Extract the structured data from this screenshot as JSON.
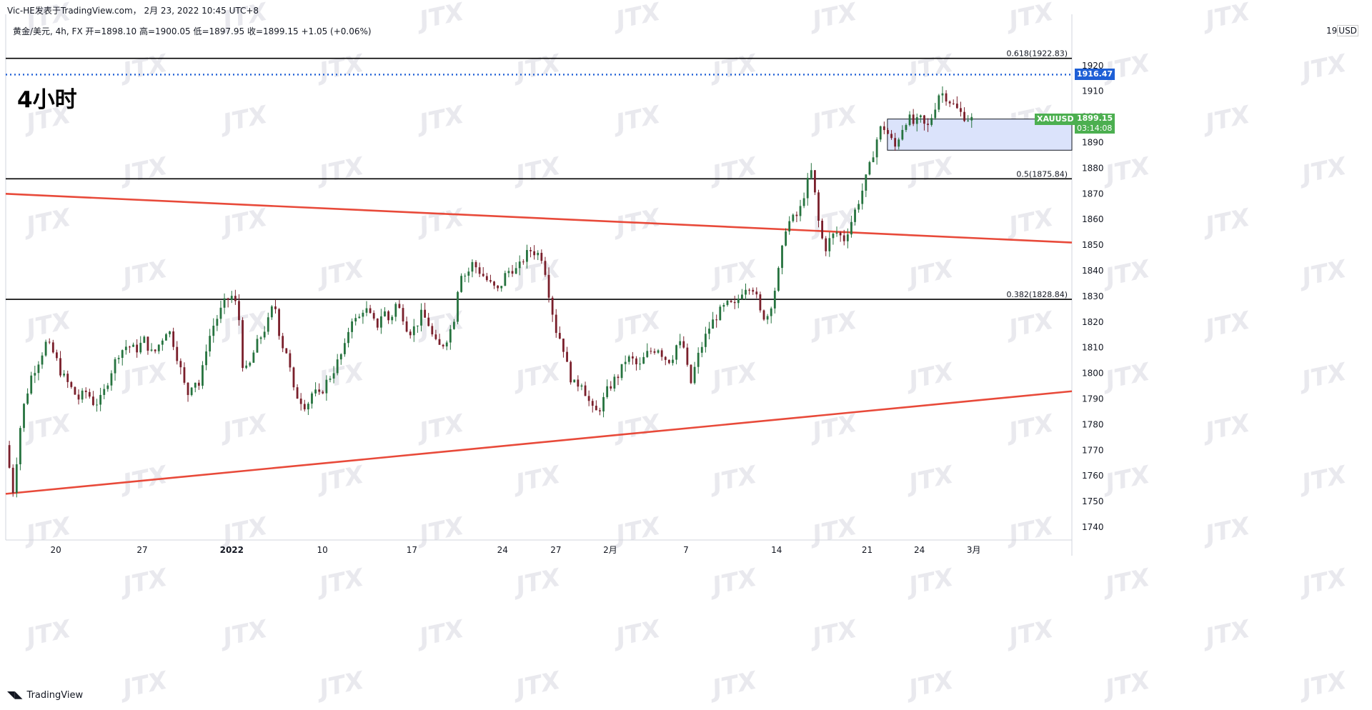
{
  "header": {
    "publisher": "Vic-HE发表于TradingView.com， 2月 23, 2022 10:45 UTC+8",
    "symbol_line": "黄金/美元, 4h, FX  开=1898.10  高=1900.05  低=1897.95  收=1899.15  +1.05 (+0.06%)",
    "timeframe": "4小时",
    "currency": "USD",
    "currency_tick": "19"
  },
  "footer": {
    "logo": "TradingView"
  },
  "watermark": "JTX",
  "colors": {
    "up": "#26733f",
    "down": "#7a1f2b",
    "trend": "#e84a3a",
    "level": "#000000",
    "dotted": "#1e5fd6",
    "zone": "#dbe3fb",
    "badge_green": "#4caf50",
    "badge_blue": "#1e5fd6"
  },
  "chart_data": {
    "type": "candlestick",
    "symbol": "XAUUSD",
    "timeframe": "4h",
    "ylim": [
      1735,
      1940
    ],
    "y_ticks": [
      1740,
      1750,
      1760,
      1770,
      1780,
      1790,
      1800,
      1810,
      1820,
      1830,
      1840,
      1850,
      1860,
      1870,
      1880,
      1890,
      1900,
      1910,
      1920
    ],
    "x_ticks": [
      {
        "label": "20",
        "pos": 0.047
      },
      {
        "label": "27",
        "pos": 0.128
      },
      {
        "label": "2022",
        "pos": 0.212,
        "bold": true
      },
      {
        "label": "10",
        "pos": 0.297
      },
      {
        "label": "17",
        "pos": 0.381
      },
      {
        "label": "24",
        "pos": 0.466
      },
      {
        "label": "27",
        "pos": 0.516
      },
      {
        "label": "2月",
        "pos": 0.567
      },
      {
        "label": "7",
        "pos": 0.638
      },
      {
        "label": "14",
        "pos": 0.723
      },
      {
        "label": "21",
        "pos": 0.808
      },
      {
        "label": "24",
        "pos": 0.857
      },
      {
        "label": "3月",
        "pos": 0.908
      }
    ],
    "price_path": [
      [
        0.0,
        1772
      ],
      [
        0.007,
        1754
      ],
      [
        0.015,
        1784
      ],
      [
        0.024,
        1799
      ],
      [
        0.032,
        1806
      ],
      [
        0.038,
        1812
      ],
      [
        0.046,
        1807
      ],
      [
        0.052,
        1800
      ],
      [
        0.06,
        1795
      ],
      [
        0.068,
        1790
      ],
      [
        0.076,
        1793
      ],
      [
        0.083,
        1788
      ],
      [
        0.09,
        1790
      ],
      [
        0.098,
        1800
      ],
      [
        0.106,
        1808
      ],
      [
        0.114,
        1811
      ],
      [
        0.122,
        1809
      ],
      [
        0.13,
        1813
      ],
      [
        0.138,
        1807
      ],
      [
        0.146,
        1813
      ],
      [
        0.152,
        1818
      ],
      [
        0.158,
        1811
      ],
      [
        0.165,
        1800
      ],
      [
        0.17,
        1791
      ],
      [
        0.176,
        1798
      ],
      [
        0.182,
        1795
      ],
      [
        0.188,
        1810
      ],
      [
        0.194,
        1818
      ],
      [
        0.2,
        1823
      ],
      [
        0.206,
        1828
      ],
      [
        0.212,
        1830
      ],
      [
        0.218,
        1825
      ],
      [
        0.223,
        1800
      ],
      [
        0.228,
        1802
      ],
      [
        0.234,
        1810
      ],
      [
        0.24,
        1815
      ],
      [
        0.246,
        1820
      ],
      [
        0.252,
        1828
      ],
      [
        0.258,
        1812
      ],
      [
        0.264,
        1808
      ],
      [
        0.27,
        1793
      ],
      [
        0.276,
        1790
      ],
      [
        0.282,
        1787
      ],
      [
        0.288,
        1793
      ],
      [
        0.294,
        1791
      ],
      [
        0.3,
        1796
      ],
      [
        0.306,
        1800
      ],
      [
        0.312,
        1805
      ],
      [
        0.318,
        1810
      ],
      [
        0.324,
        1822
      ],
      [
        0.33,
        1820
      ],
      [
        0.336,
        1826
      ],
      [
        0.342,
        1822
      ],
      [
        0.348,
        1818
      ],
      [
        0.354,
        1825
      ],
      [
        0.36,
        1820
      ],
      [
        0.366,
        1827
      ],
      [
        0.372,
        1823
      ],
      [
        0.378,
        1816
      ],
      [
        0.384,
        1818
      ],
      [
        0.39,
        1823
      ],
      [
        0.396,
        1820
      ],
      [
        0.402,
        1812
      ],
      [
        0.408,
        1810
      ],
      [
        0.414,
        1814
      ],
      [
        0.42,
        1820
      ],
      [
        0.426,
        1840
      ],
      [
        0.432,
        1838
      ],
      [
        0.438,
        1843
      ],
      [
        0.444,
        1840
      ],
      [
        0.45,
        1837
      ],
      [
        0.456,
        1834
      ],
      [
        0.462,
        1832
      ],
      [
        0.468,
        1838
      ],
      [
        0.474,
        1841
      ],
      [
        0.48,
        1840
      ],
      [
        0.486,
        1845
      ],
      [
        0.492,
        1848
      ],
      [
        0.498,
        1847
      ],
      [
        0.504,
        1845
      ],
      [
        0.51,
        1830
      ],
      [
        0.516,
        1817
      ],
      [
        0.522,
        1812
      ],
      [
        0.528,
        1800
      ],
      [
        0.534,
        1795
      ],
      [
        0.54,
        1797
      ],
      [
        0.546,
        1790
      ],
      [
        0.552,
        1784
      ],
      [
        0.558,
        1787
      ],
      [
        0.564,
        1793
      ],
      [
        0.57,
        1797
      ],
      [
        0.576,
        1800
      ],
      [
        0.582,
        1806
      ],
      [
        0.588,
        1805
      ],
      [
        0.594,
        1802
      ],
      [
        0.6,
        1807
      ],
      [
        0.606,
        1809
      ],
      [
        0.612,
        1810
      ],
      [
        0.618,
        1806
      ],
      [
        0.624,
        1805
      ],
      [
        0.63,
        1812
      ],
      [
        0.636,
        1810
      ],
      [
        0.642,
        1795
      ],
      [
        0.648,
        1805
      ],
      [
        0.654,
        1812
      ],
      [
        0.66,
        1818
      ],
      [
        0.666,
        1822
      ],
      [
        0.672,
        1825
      ],
      [
        0.678,
        1827
      ],
      [
        0.684,
        1826
      ],
      [
        0.69,
        1832
      ],
      [
        0.696,
        1835
      ],
      [
        0.702,
        1833
      ],
      [
        0.708,
        1823
      ],
      [
        0.714,
        1822
      ],
      [
        0.72,
        1830
      ],
      [
        0.726,
        1842
      ],
      [
        0.732,
        1858
      ],
      [
        0.738,
        1860
      ],
      [
        0.744,
        1862
      ],
      [
        0.75,
        1872
      ],
      [
        0.756,
        1879
      ],
      [
        0.762,
        1860
      ],
      [
        0.768,
        1848
      ],
      [
        0.774,
        1853
      ],
      [
        0.78,
        1855
      ],
      [
        0.786,
        1852
      ],
      [
        0.792,
        1858
      ],
      [
        0.798,
        1865
      ],
      [
        0.804,
        1872
      ],
      [
        0.81,
        1880
      ],
      [
        0.816,
        1890
      ],
      [
        0.822,
        1897
      ],
      [
        0.828,
        1893
      ],
      [
        0.834,
        1888
      ],
      [
        0.84,
        1895
      ],
      [
        0.846,
        1900
      ],
      [
        0.852,
        1897
      ],
      [
        0.858,
        1899
      ],
      [
        0.864,
        1895
      ],
      [
        0.87,
        1902
      ],
      [
        0.876,
        1910
      ],
      [
        0.882,
        1908
      ],
      [
        0.888,
        1905
      ],
      [
        0.894,
        1902
      ],
      [
        0.9,
        1900
      ],
      [
        0.906,
        1899
      ]
    ],
    "trendlines": [
      {
        "from": [
          0.0,
          1870
        ],
        "to": [
          1.0,
          1851
        ]
      },
      {
        "from": [
          0.0,
          1753
        ],
        "to": [
          1.0,
          1793
        ]
      }
    ],
    "levels": [
      {
        "price": 1922.83,
        "label": "0.618(1922.83)"
      },
      {
        "price": 1875.84,
        "label": "0.5(1875.84)"
      },
      {
        "price": 1828.84,
        "label": "0.382(1828.84)"
      }
    ],
    "dotted_level": {
      "price": 1916.47,
      "label": "1916.47"
    },
    "zone": {
      "x_start": 0.827,
      "top": 1899.15,
      "bottom": 1887
    },
    "last": {
      "symbol": "XAUUSD",
      "price": "1899.15",
      "countdown": "03:14:08",
      "value": 1899.15
    }
  }
}
